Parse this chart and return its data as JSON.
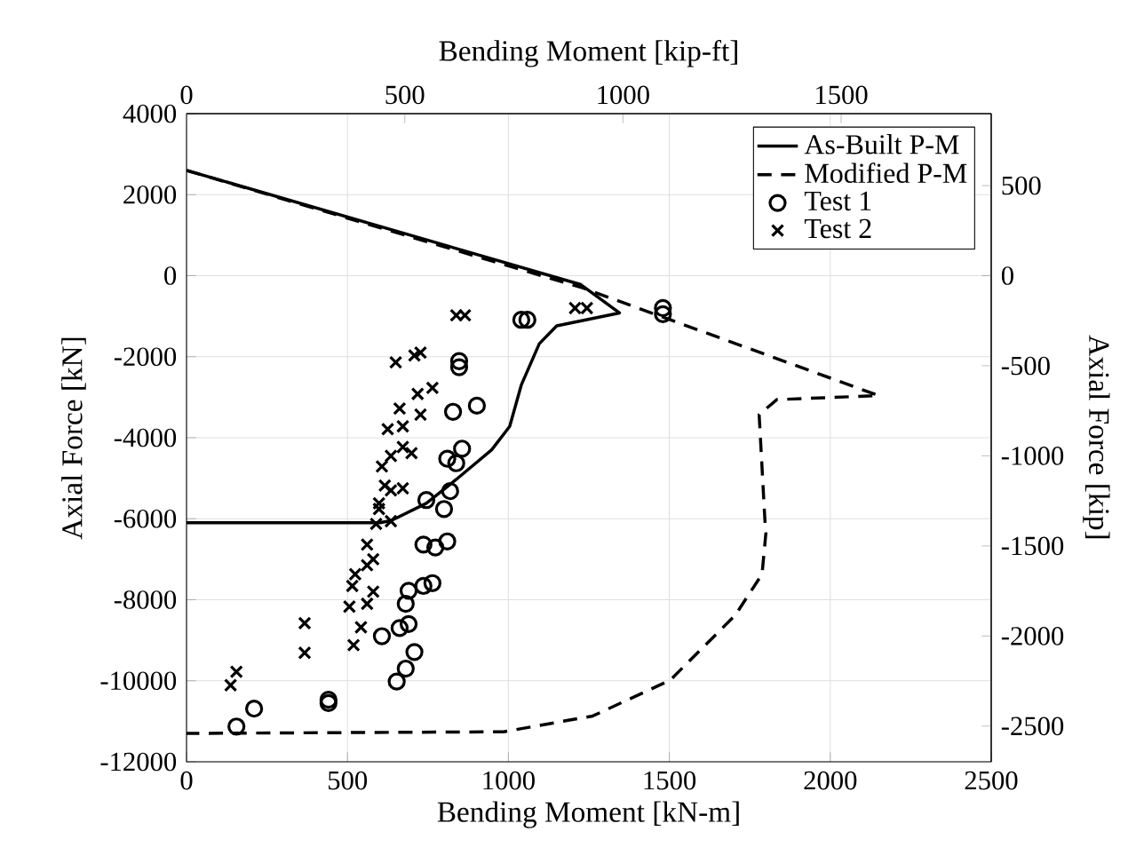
{
  "chart_data": {
    "type": "line",
    "xlabel": "Bending Moment [kN-m]",
    "ylabel": "Axial Force [kN]",
    "x2label": "Bending Moment [kip-ft]",
    "y2label": "Axial Force [kip]",
    "xlim": [
      0,
      2500
    ],
    "xticks": [
      0,
      500,
      1000,
      1500,
      2000,
      2500
    ],
    "ylim": [
      -12000,
      4000
    ],
    "yticks": [
      -12000,
      -10000,
      -8000,
      -6000,
      -4000,
      -2000,
      0,
      2000,
      4000
    ],
    "x2lim": [
      0,
      1843.9
    ],
    "x2ticks": [
      0,
      500,
      1000,
      1500
    ],
    "y2lim": [
      -2697.8,
      899.3
    ],
    "y2ticks": [
      -2500,
      -2000,
      -1500,
      -1000,
      -500,
      0,
      500
    ],
    "grid": true,
    "legend": "top right",
    "series": [
      {
        "name": "As-Built P-M",
        "line_style": "solid",
        "color": "#000000",
        "x": [
          0,
          1225,
          1345,
          1150,
          1096,
          1040,
          1004,
          948,
          838,
          745,
          635,
          600,
          0
        ],
        "values": [
          2600,
          -220,
          -920,
          -1240,
          -1680,
          -2700,
          -3720,
          -4300,
          -5030,
          -5620,
          -6050,
          -6100,
          -6100
        ]
      },
      {
        "name": "Modified P-M",
        "line_style": "dashed",
        "color": "#000000",
        "x": [
          0,
          1230,
          2150,
          1834,
          1779,
          1797,
          1800,
          1788,
          1705,
          1502,
          1262,
          985,
          0
        ],
        "values": [
          2600,
          -300,
          -2960,
          -3060,
          -3430,
          -6050,
          -6350,
          -7370,
          -8380,
          -9990,
          -10870,
          -11260,
          -11300
        ]
      },
      {
        "name": "Test 1",
        "type": "scatter",
        "marker": "circle",
        "color": "#000000",
        "x": [
          1040,
          1059,
          1480,
          1480,
          847,
          847,
          902,
          828,
          856,
          810,
          838,
          819,
          745,
          800,
          810,
          736,
          773,
          764,
          736,
          690,
          681,
          690,
          662,
          607,
          708,
          681,
          653,
          441,
          441,
          210,
          155
        ],
        "values": [
          -1090,
          -1090,
          -800,
          -950,
          -2110,
          -2260,
          -3210,
          -3360,
          -4270,
          -4520,
          -4630,
          -5320,
          -5540,
          -5760,
          -6560,
          -6640,
          -6710,
          -7590,
          -7660,
          -7780,
          -8100,
          -8600,
          -8700,
          -8900,
          -9290,
          -9700,
          -10020,
          -10470,
          -10550,
          -10690,
          -11130
        ]
      },
      {
        "name": "Test 2",
        "type": "scatter",
        "marker": "cross",
        "color": "#000000",
        "x": [
          838,
          865,
          650,
          708,
          727,
          764,
          718,
          662,
          727,
          672,
          625,
          672,
          699,
          635,
          607,
          672,
          616,
          635,
          598,
          589,
          635,
          598,
          561,
          580,
          561,
          524,
          515,
          580,
          561,
          506,
          542,
          519,
          367,
          367,
          155,
          137,
          1207,
          1244
        ],
        "values": [
          -980,
          -980,
          -2140,
          -1970,
          -1900,
          -2770,
          -2920,
          -3280,
          -3430,
          -3720,
          -3790,
          -4230,
          -4380,
          -4450,
          -4710,
          -5250,
          -5180,
          -5300,
          -5620,
          -6130,
          -6060,
          -5760,
          -6640,
          -7000,
          -7150,
          -7370,
          -7660,
          -7800,
          -8100,
          -8170,
          -8680,
          -9120,
          -8580,
          -9310,
          -9780,
          -10110,
          -800,
          -800
        ]
      }
    ]
  }
}
